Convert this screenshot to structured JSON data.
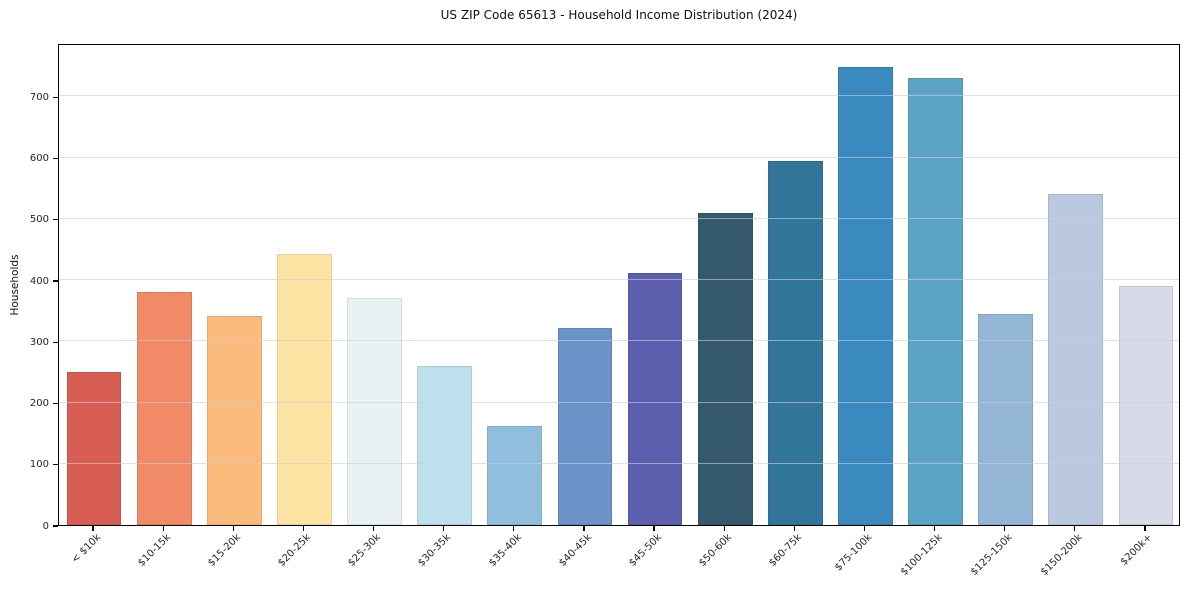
{
  "chart_data": {
    "type": "bar",
    "title": "US ZIP Code 65613 - Household Income Distribution (2024)",
    "xlabel": "",
    "ylabel": "Households",
    "categories": [
      "< $10k",
      "$10-15k",
      "$15-20k",
      "$20-25k",
      "$25-30k",
      "$30-35k",
      "$35-40k",
      "$40-45k",
      "$45-50k",
      "$50-60k",
      "$60-75k",
      "$75-100k",
      "$100-125k",
      "$125-150k",
      "$150-200k",
      "$200k+"
    ],
    "values": [
      250,
      381,
      342,
      442,
      371,
      259,
      161,
      322,
      412,
      509,
      595,
      748,
      730,
      344,
      540,
      390
    ],
    "bar_colors": [
      "#d85d52",
      "#f18a67",
      "#fbbb7c",
      "#fde4a5",
      "#e8f2f5",
      "#bedfec",
      "#90bedd",
      "#6b93c7",
      "#5b5fae",
      "#34596e",
      "#32759b",
      "#3a8abf",
      "#5ba3c5",
      "#94b6d6",
      "#bac9df",
      "#d7dae7"
    ],
    "yticks": [
      0,
      100,
      200,
      300,
      400,
      500,
      600,
      700
    ],
    "ylim": [
      0,
      787
    ],
    "xtick_rotation_deg": 45,
    "grid": "horizontal",
    "legend": "none",
    "colors": {
      "background": "#ffffff",
      "spine": "#000000",
      "gridline": "#d8d8e2",
      "text": "#262626"
    }
  }
}
